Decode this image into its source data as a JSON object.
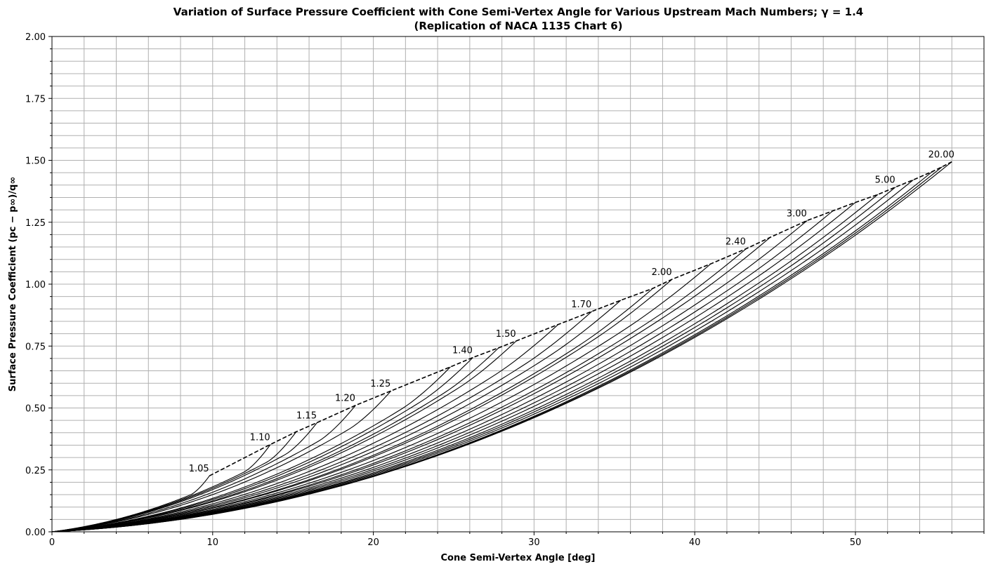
{
  "chart_data": {
    "type": "line",
    "title": "Variation of Surface Pressure Coefficient with Cone Semi-Vertex Angle for Various Upstream Mach Numbers; γ = 1.4",
    "subtitle": "(Replication of NACA 1135 Chart 6)",
    "xlabel": "Cone Semi-Vertex Angle [deg]",
    "ylabel": "Surface Pressure Coefficient (pᴄ − p∞)/q∞",
    "xlim": [
      0,
      58
    ],
    "ylim": [
      0,
      2.0
    ],
    "x_ticks": [
      0,
      10,
      20,
      30,
      40,
      50
    ],
    "y_ticks": [
      0.0,
      0.25,
      0.5,
      0.75,
      1.0,
      1.25,
      1.5,
      1.75,
      2.0
    ],
    "x_tick_labels": [
      "0",
      "10",
      "20",
      "30",
      "40",
      "50"
    ],
    "y_tick_labels": [
      "0.00",
      "0.25",
      "0.50",
      "0.75",
      "1.00",
      "1.25",
      "1.50",
      "1.75",
      "2.00"
    ],
    "grid": true,
    "minor_grid": true,
    "series": [
      {
        "label": "1.05",
        "theta_max": 9.8,
        "cp_max": 0.226,
        "cp_start": 0.182
      },
      {
        "label": "1.10",
        "theta_max": 13.6,
        "cp_max": 0.353,
        "cp_start": 0.298
      },
      {
        "theta_max": 15.2,
        "cp_max": 0.404,
        "cp_start": 0.348
      },
      {
        "label": "1.15",
        "theta_max": 16.5,
        "cp_max": 0.441,
        "cp_start": 0.387
      },
      {
        "label": "1.20",
        "theta_max": 18.9,
        "cp_max": 0.511,
        "cp_start": 0.458
      },
      {
        "label": "1.25",
        "theta_max": 21.1,
        "cp_max": 0.569,
        "cp_start": 0.522
      },
      {
        "theta_max": 24.8,
        "cp_max": 0.666,
        "cp_start": 0.626
      },
      {
        "label": "1.40",
        "theta_max": 26.2,
        "cp_max": 0.704,
        "cp_start": 0.666
      },
      {
        "theta_max": 27.8,
        "cp_max": 0.743,
        "cp_start": 0.709
      },
      {
        "label": "1.50",
        "theta_max": 28.9,
        "cp_max": 0.771,
        "cp_start": 0.739
      },
      {
        "theta_max": 31.5,
        "cp_max": 0.837,
        "cp_start": 0.808
      },
      {
        "label": "1.70",
        "theta_max": 33.6,
        "cp_max": 0.89,
        "cp_start": 0.863
      },
      {
        "theta_max": 35.4,
        "cp_max": 0.935,
        "cp_start": 0.91
      },
      {
        "theta_max": 37.4,
        "cp_max": 0.983,
        "cp_start": 0.96
      },
      {
        "label": "2.00",
        "theta_max": 38.6,
        "cp_max": 1.02,
        "cp_start": 0.998
      },
      {
        "theta_max": 41.0,
        "cp_max": 1.082,
        "cp_start": 1.062
      },
      {
        "label": "2.40",
        "theta_max": 43.2,
        "cp_max": 1.143,
        "cp_start": 1.125
      },
      {
        "theta_max": 44.7,
        "cp_max": 1.189,
        "cp_start": 1.172
      },
      {
        "label": "3.00",
        "theta_max": 47.0,
        "cp_max": 1.257,
        "cp_start": 1.242
      },
      {
        "theta_max": 48.6,
        "cp_max": 1.296,
        "cp_start": 1.283
      },
      {
        "theta_max": 50.0,
        "cp_max": 1.33,
        "cp_start": 1.318
      },
      {
        "theta_max": 51.4,
        "cp_max": 1.362,
        "cp_start": 1.351
      },
      {
        "label": "5.00",
        "theta_max": 52.5,
        "cp_max": 1.392,
        "cp_start": 1.382
      },
      {
        "theta_max": 53.6,
        "cp_max": 1.421,
        "cp_start": 1.412
      },
      {
        "theta_max": 54.8,
        "cp_max": 1.455,
        "cp_start": 1.447
      },
      {
        "theta_max": 55.4,
        "cp_max": 1.474,
        "cp_start": 1.467
      },
      {
        "label": "20.00",
        "theta_max": 56.0,
        "cp_max": 1.494,
        "cp_start": 1.488
      }
    ],
    "envelope": {
      "style": "dashed",
      "theta": [
        9.8,
        13.6,
        15.2,
        16.5,
        18.9,
        21.1,
        24.8,
        26.2,
        27.8,
        28.9,
        31.5,
        33.6,
        35.4,
        37.4,
        38.6,
        41.0,
        43.2,
        44.7,
        47.0,
        48.6,
        50.0,
        51.4,
        52.5,
        53.6,
        54.8,
        55.4,
        56.0
      ],
      "cp": [
        0.226,
        0.353,
        0.404,
        0.441,
        0.511,
        0.569,
        0.666,
        0.704,
        0.743,
        0.771,
        0.837,
        0.89,
        0.935,
        0.983,
        1.02,
        1.082,
        1.143,
        1.189,
        1.257,
        1.296,
        1.33,
        1.362,
        1.392,
        1.421,
        1.455,
        1.474,
        1.494
      ]
    }
  }
}
